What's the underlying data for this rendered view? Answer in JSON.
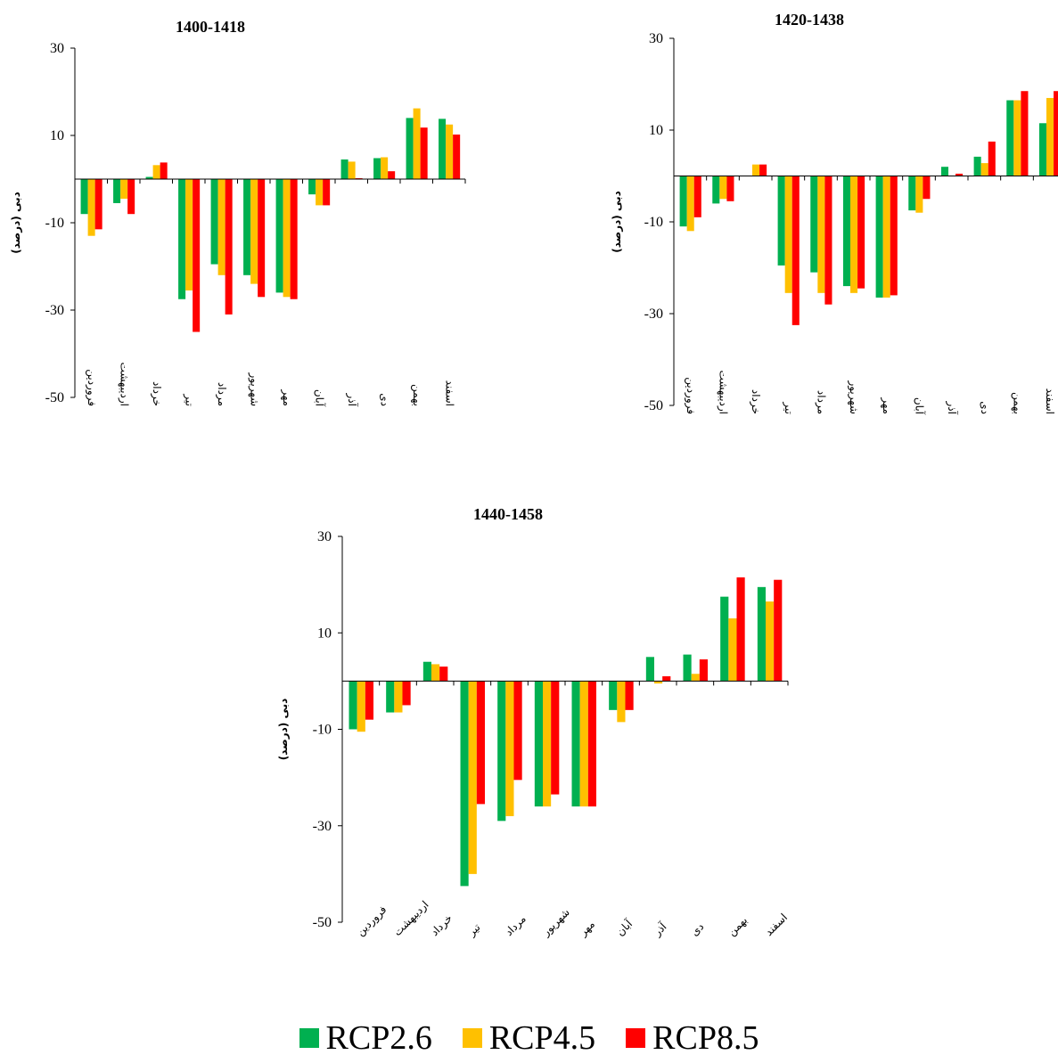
{
  "chart_data": [
    {
      "type": "bar",
      "title": "1400-1418",
      "ylabel": "دبی (درصد)",
      "ylim": [
        -50,
        30
      ],
      "yticks": [
        "30",
        "10",
        "-10",
        "-30",
        "-50"
      ],
      "categories": [
        "فروردین",
        "اردیبهشت",
        "خرداد",
        "تیر",
        "مرداد",
        "شهریور",
        "مهر",
        "آبان",
        "آذر",
        "دی",
        "بهمن",
        "اسفند"
      ],
      "series": [
        {
          "name": "RCP2.6",
          "values": [
            -8,
            -5.5,
            0.5,
            -27.5,
            -19.5,
            -22,
            -26,
            -3.5,
            4.5,
            4.8,
            14,
            13.8
          ]
        },
        {
          "name": "RCP4.5",
          "values": [
            -13,
            -4.5,
            3.2,
            -25.5,
            -22,
            -24,
            -27,
            -6,
            4,
            5,
            16.2,
            12.5
          ]
        },
        {
          "name": "RCP8.5",
          "values": [
            -11.5,
            -8,
            3.8,
            -35,
            -31,
            -27,
            -27.5,
            -6,
            0.2,
            1.8,
            11.8,
            10.2
          ]
        }
      ]
    },
    {
      "type": "bar",
      "title": "1420-1438",
      "ylabel": "دبی (درصد)",
      "ylim": [
        -50,
        30
      ],
      "yticks": [
        "30",
        "10",
        "-10",
        "-30",
        "-50"
      ],
      "categories": [
        "فروردین",
        "اردیبهشت",
        "خرداد",
        "تیر",
        "مرداد",
        "شهریور",
        "مهر",
        "آبان",
        "آذر",
        "دی",
        "بهمن",
        "اسفند"
      ],
      "series": [
        {
          "name": "RCP2.6",
          "values": [
            -11,
            -6,
            0,
            -19.5,
            -21,
            -24,
            -26.5,
            -7.5,
            2,
            4.2,
            16.5,
            11.5
          ]
        },
        {
          "name": "RCP4.5",
          "values": [
            -12,
            -5,
            2.5,
            -25.5,
            -25.5,
            -25.5,
            -26.5,
            -8,
            0,
            2.8,
            16.5,
            17
          ]
        },
        {
          "name": "RCP8.5",
          "values": [
            -9,
            -5.5,
            2.5,
            -32.5,
            -28,
            -24.5,
            -26,
            -5,
            0.5,
            7.5,
            18.5,
            18.5
          ]
        }
      ]
    },
    {
      "type": "bar",
      "title": "1440-1458",
      "ylabel": "دبی (درصد)",
      "ylim": [
        -50,
        30
      ],
      "yticks": [
        "30",
        "10",
        "-10",
        "-30",
        "-50"
      ],
      "categories": [
        "فروردین",
        "اردیبهشت",
        "خرداد",
        "تیر",
        "مرداد",
        "شهریور",
        "مهر",
        "آبان",
        "آذر",
        "دی",
        "بهمن",
        "اسفند"
      ],
      "series": [
        {
          "name": "RCP2.6",
          "values": [
            -10,
            -6.5,
            4,
            -42.5,
            -29,
            -26,
            -26,
            -6,
            5,
            5.5,
            17.5,
            19.5
          ]
        },
        {
          "name": "RCP4.5",
          "values": [
            -10.5,
            -6.5,
            3.5,
            -40,
            -28,
            -26,
            -26,
            -8.5,
            -0.5,
            1.5,
            13,
            16.5
          ]
        },
        {
          "name": "RCP8.5",
          "values": [
            -8,
            -5,
            3,
            -25.5,
            -20.5,
            -23.5,
            -26,
            -6,
            1,
            4.5,
            21.5,
            21
          ]
        }
      ]
    }
  ],
  "colors": {
    "RCP2.6": "#00b050",
    "RCP4.5": "#ffc000",
    "RCP8.5": "#ff0000"
  },
  "legend": [
    {
      "label": "RCP2.6",
      "color": "#00b050"
    },
    {
      "label": "RCP4.5",
      "color": "#ffc000"
    },
    {
      "label": "RCP8.5",
      "color": "#ff0000"
    }
  ]
}
